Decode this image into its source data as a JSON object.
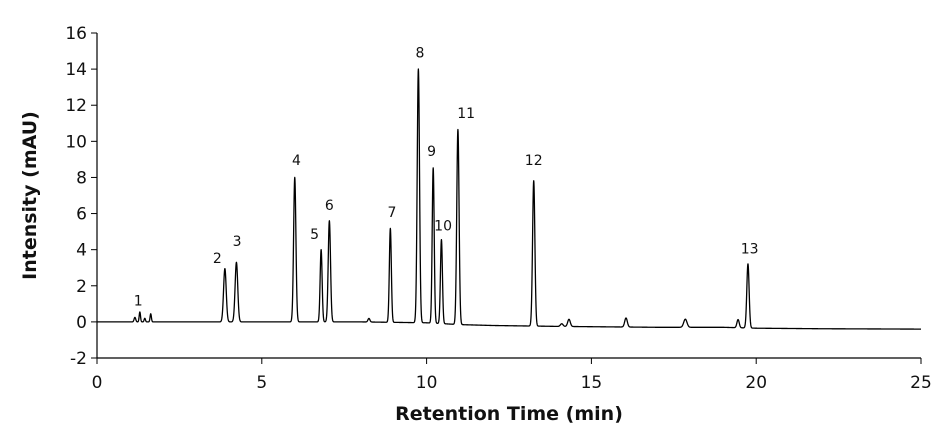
{
  "chart_data": {
    "type": "line",
    "title": "",
    "xlabel": "Retention Time (min)",
    "ylabel": "Intensity (mAU)",
    "xlim": [
      0,
      25
    ],
    "ylim": [
      -2,
      16
    ],
    "x_ticks": [
      0,
      5,
      10,
      15,
      20,
      25
    ],
    "y_ticks": [
      -2,
      0,
      2,
      4,
      6,
      8,
      10,
      12,
      14,
      16
    ],
    "x_tick_labels": [
      "0",
      "5",
      "10",
      "15",
      "20",
      "25"
    ],
    "y_tick_labels": [
      "-2",
      "0",
      "2",
      "4",
      "6",
      "8",
      "10",
      "12",
      "14",
      "16"
    ],
    "grid": false,
    "line_color": "#000000",
    "baseline": {
      "points": [
        [
          0,
          0
        ],
        [
          5,
          0
        ],
        [
          8,
          0
        ],
        [
          10,
          -0.05
        ],
        [
          11,
          -0.15
        ],
        [
          12,
          -0.2
        ],
        [
          14,
          -0.25
        ],
        [
          17,
          -0.3
        ],
        [
          19,
          -0.3
        ],
        [
          20,
          -0.35
        ],
        [
          22,
          -0.38
        ],
        [
          25,
          -0.4
        ]
      ]
    },
    "peaks": [
      {
        "rt": 1.15,
        "height": 0.25,
        "width": 0.025
      },
      {
        "rt": 1.3,
        "height": 0.55,
        "width": 0.02
      },
      {
        "rt": 1.45,
        "height": 0.2,
        "width": 0.02
      },
      {
        "rt": 1.63,
        "height": 0.45,
        "width": 0.02
      },
      {
        "rt": 3.88,
        "height": 2.95,
        "width": 0.04
      },
      {
        "rt": 4.23,
        "height": 3.3,
        "width": 0.04
      },
      {
        "rt": 6.0,
        "height": 8.0,
        "width": 0.035
      },
      {
        "rt": 6.8,
        "height": 4.0,
        "width": 0.03
      },
      {
        "rt": 7.05,
        "height": 5.6,
        "width": 0.035
      },
      {
        "rt": 8.25,
        "height": 0.2,
        "width": 0.03
      },
      {
        "rt": 8.9,
        "height": 5.2,
        "width": 0.03
      },
      {
        "rt": 9.75,
        "height": 14.05,
        "width": 0.035
      },
      {
        "rt": 10.2,
        "height": 8.6,
        "width": 0.03
      },
      {
        "rt": 10.45,
        "height": 4.65,
        "width": 0.03
      },
      {
        "rt": 10.95,
        "height": 10.8,
        "width": 0.035
      },
      {
        "rt": 13.25,
        "height": 8.05,
        "width": 0.035
      },
      {
        "rt": 14.1,
        "height": 0.15,
        "width": 0.04
      },
      {
        "rt": 14.32,
        "height": 0.4,
        "width": 0.04
      },
      {
        "rt": 16.05,
        "height": 0.5,
        "width": 0.04
      },
      {
        "rt": 17.85,
        "height": 0.45,
        "width": 0.05
      },
      {
        "rt": 19.45,
        "height": 0.45,
        "width": 0.035
      },
      {
        "rt": 19.75,
        "height": 3.55,
        "width": 0.035
      }
    ],
    "peak_labels": [
      {
        "text": "1",
        "x": 1.25,
        "y": 0.9
      },
      {
        "text": "2",
        "x": 3.65,
        "y": 3.25
      },
      {
        "text": "3",
        "x": 4.25,
        "y": 4.2
      },
      {
        "text": "4",
        "x": 6.05,
        "y": 8.7
      },
      {
        "text": "5",
        "x": 6.6,
        "y": 4.6
      },
      {
        "text": "6",
        "x": 7.05,
        "y": 6.2
      },
      {
        "text": "7",
        "x": 8.95,
        "y": 5.8
      },
      {
        "text": "8",
        "x": 9.8,
        "y": 14.65
      },
      {
        "text": "9",
        "x": 10.15,
        "y": 9.2
      },
      {
        "text": "10",
        "x": 10.5,
        "y": 5.05
      },
      {
        "text": "11",
        "x": 11.2,
        "y": 11.3
      },
      {
        "text": "12",
        "x": 13.25,
        "y": 8.7
      },
      {
        "text": "13",
        "x": 19.8,
        "y": 3.8
      }
    ]
  }
}
